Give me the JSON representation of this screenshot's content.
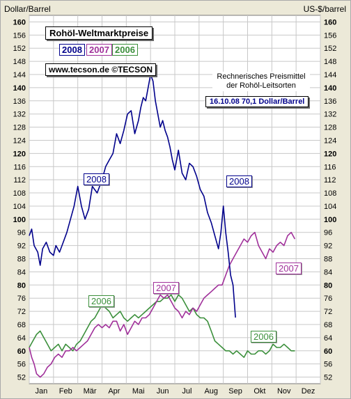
{
  "header": {
    "unit_left": "Dollar/Barrel",
    "unit_right": "US-$/barrel",
    "title": "Rohöl-Weltmarktpreise",
    "website": "www.tecson.de  ©TECSON",
    "note_line1": "Rechnerisches Preismittel",
    "note_line2": "der Rohöl-Leitsorten",
    "current_price": "16.10.08    70,1 Dollar/Barrel",
    "legend_2008": "2008",
    "legend_2007": "2007",
    "legend_2006": "2006"
  },
  "labels": {
    "l2008a": "2008",
    "l2008b": "2008",
    "l2007a": "2007",
    "l2007b": "2007",
    "l2006a": "2006",
    "l2006b": "2006"
  },
  "colors": {
    "s2008": "#00008b",
    "s2007": "#a0309a",
    "s2006": "#3b8f3b",
    "grid": "#c8c8c8"
  },
  "chart_data": {
    "type": "line",
    "title": "Rohöl-Weltmarktpreise",
    "ylabel": "Dollar/Barrel",
    "ylabel_right": "US-$/barrel",
    "ylim": [
      50,
      162
    ],
    "yticks": [
      52,
      56,
      60,
      64,
      68,
      72,
      76,
      80,
      84,
      88,
      92,
      96,
      100,
      104,
      108,
      112,
      116,
      120,
      124,
      128,
      132,
      136,
      140,
      144,
      148,
      152,
      156,
      160
    ],
    "ytick_labels": [
      "52",
      "56",
      "60",
      "64",
      "68",
      "72",
      "76",
      "80",
      "84",
      "88",
      "92",
      "96",
      "100",
      "104",
      "108",
      "112",
      "116",
      "120",
      "124",
      "128",
      "132",
      "136",
      "140",
      "144",
      "148",
      "152",
      "156",
      "160"
    ],
    "xticks": [
      "Jan",
      "Feb",
      "Mär",
      "Apr",
      "Mai",
      "Jun",
      "Jul",
      "Aug",
      "Sep",
      "Okt",
      "Nov",
      "Dez"
    ],
    "x_unit": "month (1.0 = start of Jan)",
    "grid": true,
    "series": [
      {
        "name": "2008",
        "x": [
          1.0,
          1.1,
          1.2,
          1.35,
          1.45,
          1.55,
          1.7,
          1.85,
          2.0,
          2.1,
          2.25,
          2.4,
          2.55,
          2.7,
          2.85,
          3.0,
          3.15,
          3.3,
          3.45,
          3.6,
          3.8,
          4.0,
          4.15,
          4.3,
          4.45,
          4.6,
          4.75,
          4.9,
          5.05,
          5.2,
          5.35,
          5.5,
          5.6,
          5.7,
          5.8,
          5.9,
          6.0,
          6.1,
          6.2,
          6.3,
          6.4,
          6.5,
          6.6,
          6.7,
          6.8,
          6.9,
          7.0,
          7.15,
          7.3,
          7.45,
          7.6,
          7.75,
          7.9,
          8.05,
          8.2,
          8.35,
          8.5,
          8.65,
          8.8,
          8.9,
          9.0,
          9.1,
          9.2,
          9.3,
          9.4,
          9.5
        ],
        "values": [
          95,
          97,
          92,
          90,
          86,
          91,
          93,
          90,
          89,
          92,
          90,
          93,
          96,
          100,
          104,
          110,
          104,
          100,
          103,
          110,
          108,
          112,
          116,
          118,
          120,
          126,
          123,
          127,
          132,
          133,
          126,
          130,
          134,
          137,
          136,
          140,
          144,
          142,
          136,
          132,
          128,
          130,
          127,
          125,
          122,
          118,
          115,
          121,
          114,
          112,
          117,
          116,
          113,
          109,
          107,
          102,
          99,
          95,
          91,
          96,
          104,
          96,
          90,
          83,
          80,
          70.1
        ]
      },
      {
        "name": "2007",
        "x": [
          1.0,
          1.1,
          1.2,
          1.3,
          1.45,
          1.6,
          1.75,
          1.9,
          2.05,
          2.2,
          2.35,
          2.5,
          2.65,
          2.8,
          2.95,
          3.1,
          3.25,
          3.4,
          3.55,
          3.7,
          3.85,
          4.0,
          4.15,
          4.3,
          4.45,
          4.6,
          4.75,
          4.9,
          5.05,
          5.2,
          5.35,
          5.5,
          5.65,
          5.8,
          5.95,
          6.1,
          6.25,
          6.4,
          6.55,
          6.7,
          6.85,
          7.0,
          7.15,
          7.3,
          7.45,
          7.6,
          7.75,
          7.9,
          8.05,
          8.2,
          8.35,
          8.5,
          8.65,
          8.8,
          8.95,
          9.1,
          9.25,
          9.4,
          9.55,
          9.7,
          9.85,
          10.0,
          10.15,
          10.3,
          10.45,
          10.6,
          10.75,
          10.9,
          11.05,
          11.2,
          11.35,
          11.5,
          11.65,
          11.8,
          11.95
        ],
        "values": [
          61,
          58,
          56,
          53,
          52,
          53,
          55,
          56,
          58,
          59,
          58,
          60,
          60,
          61,
          60,
          61,
          62,
          63,
          65,
          67,
          68,
          67,
          68,
          67,
          69,
          69,
          66,
          68,
          65,
          67,
          69,
          68,
          70,
          70,
          71,
          73,
          75,
          77,
          76,
          77,
          75,
          73,
          72,
          70,
          72,
          71,
          73,
          72,
          74,
          76,
          77,
          78,
          79,
          80,
          80,
          83,
          86,
          88,
          90,
          92,
          94,
          93,
          95,
          96,
          92,
          90,
          88,
          91,
          90,
          92,
          93,
          92,
          95,
          96,
          94
        ]
      },
      {
        "name": "2006",
        "x": [
          1.0,
          1.15,
          1.3,
          1.45,
          1.6,
          1.75,
          1.9,
          2.05,
          2.2,
          2.35,
          2.5,
          2.65,
          2.8,
          2.95,
          3.1,
          3.25,
          3.4,
          3.55,
          3.7,
          3.85,
          4.0,
          4.15,
          4.3,
          4.45,
          4.6,
          4.75,
          4.9,
          5.05,
          5.2,
          5.35,
          5.5,
          5.65,
          5.8,
          5.95,
          6.1,
          6.25,
          6.4,
          6.55,
          6.7,
          6.85,
          7.0,
          7.15,
          7.3,
          7.45,
          7.6,
          7.75,
          7.9,
          8.05,
          8.2,
          8.35,
          8.5,
          8.65,
          8.8,
          8.95,
          9.1,
          9.25,
          9.4,
          9.55,
          9.7,
          9.85,
          10.0,
          10.15,
          10.3,
          10.45,
          10.6,
          10.75,
          10.9,
          11.05,
          11.2,
          11.35,
          11.5,
          11.65,
          11.8,
          11.95
        ],
        "values": [
          61,
          63,
          65,
          66,
          64,
          62,
          60,
          61,
          62,
          60,
          62,
          61,
          60,
          62,
          63,
          65,
          67,
          69,
          70,
          72,
          74,
          73,
          72,
          70,
          71,
          72,
          70,
          69,
          70,
          71,
          70,
          71,
          72,
          73,
          74,
          75,
          75,
          76,
          76,
          77,
          75,
          77,
          76,
          74,
          72,
          73,
          71,
          70,
          70,
          69,
          66,
          63,
          62,
          61,
          60,
          60,
          59,
          60,
          59,
          58,
          60,
          59,
          59,
          60,
          60,
          59,
          60,
          62,
          61,
          61,
          62,
          61,
          60,
          60
        ]
      }
    ]
  }
}
